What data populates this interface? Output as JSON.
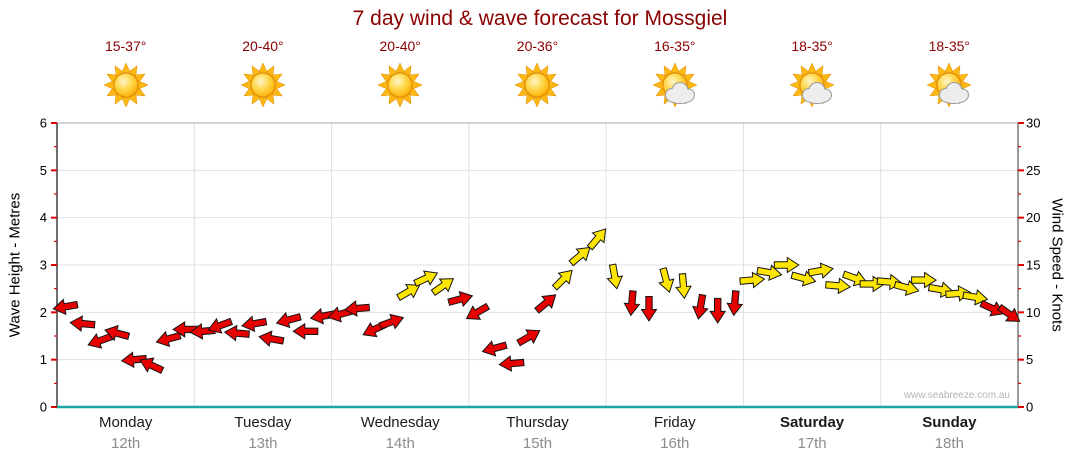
{
  "title": "7 day wind & wave forecast for Mossgiel",
  "watermark": "www.seabreeze.com.au",
  "days": [
    {
      "name": "Monday",
      "date": "12th",
      "temp_range": "15-37°",
      "icon": "sunny",
      "emphasis": false
    },
    {
      "name": "Tuesday",
      "date": "13th",
      "temp_range": "20-40°",
      "icon": "sunny",
      "emphasis": false
    },
    {
      "name": "Wednesday",
      "date": "14th",
      "temp_range": "20-40°",
      "icon": "sunny",
      "emphasis": false
    },
    {
      "name": "Thursday",
      "date": "15th",
      "temp_range": "20-36°",
      "icon": "sunny",
      "emphasis": false
    },
    {
      "name": "Friday",
      "date": "16th",
      "temp_range": "16-35°",
      "icon": "partly-cloudy",
      "emphasis": false
    },
    {
      "name": "Saturday",
      "date": "17th",
      "temp_range": "18-35°",
      "icon": "partly-cloudy",
      "emphasis": true
    },
    {
      "name": "Sunday",
      "date": "18th",
      "temp_range": "18-35°",
      "icon": "partly-cloudy",
      "emphasis": true
    }
  ],
  "axes": {
    "left_label": "Wave Height - Metres",
    "right_label": "Wind Speed - Knots",
    "left_ticks": [
      0,
      1,
      2,
      3,
      4,
      5,
      6
    ],
    "right_ticks": [
      0,
      5,
      10,
      15,
      20,
      25,
      30
    ],
    "left_range": [
      0,
      6
    ],
    "right_range": [
      0,
      30
    ]
  },
  "colors": {
    "title": "#8b0000",
    "temp": "#8b0000",
    "arrow_red": "#e60000",
    "arrow_yellow": "#ffe600",
    "arrow_outline": "#151515",
    "axis_bottom": "#18a6a6",
    "axis_line": "#333333",
    "tick": "#dd0000",
    "grid": "#e0e0e0",
    "border": "#a6a6a6",
    "date_text": "#8c8c8c",
    "watermark_text": "#b4b4b4"
  },
  "chart_data": {
    "type": "scatter",
    "marker": "wind-arrow",
    "title": "7 day wind & wave forecast for Mossgiel",
    "xlabel": "",
    "ylabel_left": "Wave Height - Metres",
    "ylabel_right": "Wind Speed - Knots",
    "x_categories": [
      "Monday 12th",
      "Tuesday 13th",
      "Wednesday 14th",
      "Thursday 15th",
      "Friday 16th",
      "Saturday 17th",
      "Sunday 18th"
    ],
    "x_range_days": [
      0,
      7
    ],
    "y_right_range": [
      0,
      30
    ],
    "grid": true,
    "legend": "none",
    "point_format": [
      "t_days",
      "knots",
      "dir_deg",
      "color"
    ],
    "series": [
      {
        "name": "Wind speed & direction",
        "points": [
          [
            0.0625,
            10.6,
            170,
            "red"
          ],
          [
            0.1875,
            8.8,
            185,
            "red"
          ],
          [
            0.3125,
            7.0,
            160,
            "red"
          ],
          [
            0.4375,
            7.8,
            195,
            "red"
          ],
          [
            0.5625,
            5.0,
            175,
            "red"
          ],
          [
            0.6875,
            4.4,
            205,
            "red"
          ],
          [
            0.8125,
            7.2,
            165,
            "red"
          ],
          [
            0.9375,
            8.2,
            180,
            "red"
          ],
          [
            1.0625,
            8.0,
            175,
            "red"
          ],
          [
            1.1875,
            8.6,
            160,
            "red"
          ],
          [
            1.3125,
            7.8,
            185,
            "red"
          ],
          [
            1.4375,
            8.8,
            170,
            "red"
          ],
          [
            1.5625,
            7.2,
            190,
            "red"
          ],
          [
            1.6875,
            9.2,
            165,
            "red"
          ],
          [
            1.8125,
            8.0,
            180,
            "red"
          ],
          [
            1.9375,
            9.6,
            170,
            "red"
          ],
          [
            2.0625,
            9.8,
            165,
            "red"
          ],
          [
            2.1875,
            10.4,
            175,
            "red"
          ],
          [
            2.3125,
            8.2,
            155,
            "red"
          ],
          [
            2.4375,
            9.0,
            340,
            "red"
          ],
          [
            2.5625,
            12.2,
            330,
            "yellow"
          ],
          [
            2.6875,
            13.6,
            335,
            "yellow"
          ],
          [
            2.8125,
            12.8,
            325,
            "yellow"
          ],
          [
            2.9375,
            11.4,
            345,
            "red"
          ],
          [
            3.0625,
            10.0,
            150,
            "red"
          ],
          [
            3.1875,
            6.2,
            165,
            "red"
          ],
          [
            3.3125,
            4.6,
            175,
            "red"
          ],
          [
            3.4375,
            7.4,
            330,
            "red"
          ],
          [
            3.5625,
            11.0,
            320,
            "red"
          ],
          [
            3.6875,
            13.5,
            315,
            "yellow"
          ],
          [
            3.8125,
            16.0,
            320,
            "yellow"
          ],
          [
            3.9375,
            17.8,
            310,
            "yellow"
          ],
          [
            4.0625,
            13.8,
            80,
            "yellow"
          ],
          [
            4.1875,
            11.0,
            95,
            "red"
          ],
          [
            4.3125,
            10.4,
            90,
            "red"
          ],
          [
            4.4375,
            13.4,
            75,
            "yellow"
          ],
          [
            4.5625,
            12.8,
            85,
            "yellow"
          ],
          [
            4.6875,
            10.6,
            100,
            "red"
          ],
          [
            4.8125,
            10.2,
            90,
            "red"
          ],
          [
            4.9375,
            11.0,
            95,
            "red"
          ],
          [
            5.0625,
            13.4,
            355,
            "yellow"
          ],
          [
            5.1875,
            14.2,
            10,
            "yellow"
          ],
          [
            5.3125,
            15.0,
            0,
            "yellow"
          ],
          [
            5.4375,
            13.6,
            15,
            "yellow"
          ],
          [
            5.5625,
            14.4,
            350,
            "yellow"
          ],
          [
            5.6875,
            12.8,
            5,
            "yellow"
          ],
          [
            5.8125,
            13.6,
            20,
            "yellow"
          ],
          [
            5.9375,
            13.0,
            0,
            "yellow"
          ],
          [
            6.0625,
            13.2,
            5,
            "yellow"
          ],
          [
            6.1875,
            12.6,
            15,
            "yellow"
          ],
          [
            6.3125,
            13.4,
            0,
            "yellow"
          ],
          [
            6.4375,
            12.4,
            10,
            "yellow"
          ],
          [
            6.5625,
            12.0,
            355,
            "yellow"
          ],
          [
            6.6875,
            11.6,
            10,
            "yellow"
          ],
          [
            6.8125,
            10.4,
            25,
            "red"
          ],
          [
            6.9375,
            9.8,
            35,
            "red"
          ]
        ]
      }
    ]
  }
}
